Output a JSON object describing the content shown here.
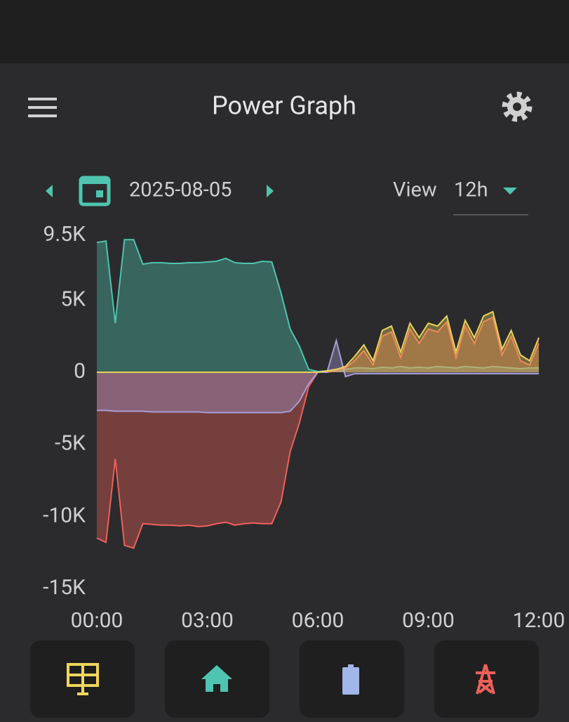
{
  "header": {
    "title": "Power Graph"
  },
  "date_bar": {
    "date": "2025-08-05",
    "view_label": "View",
    "view_value": "12h"
  },
  "chart_data": {
    "type": "area",
    "xlim": [
      0,
      12
    ],
    "xticks": [
      {
        "value": 0,
        "label": "00:00"
      },
      {
        "value": 3,
        "label": "03:00"
      },
      {
        "value": 6,
        "label": "06:00"
      },
      {
        "value": 9,
        "label": "09:00"
      },
      {
        "value": 12,
        "label": "12:00"
      }
    ],
    "ylim": [
      -15000,
      9500
    ],
    "yticks": [
      {
        "value": -15000,
        "label": "-15K"
      },
      {
        "value": -10000,
        "label": "-10K"
      },
      {
        "value": -5000,
        "label": "-5K"
      },
      0,
      {
        "value": 5000,
        "label": "5K"
      },
      {
        "value": 9500,
        "label": "9.5K"
      }
    ],
    "x": [
      0,
      0.25,
      0.5,
      0.75,
      1,
      1.25,
      1.5,
      1.75,
      2,
      2.25,
      2.5,
      2.75,
      3,
      3.25,
      3.5,
      3.75,
      4,
      4.25,
      4.5,
      4.75,
      5,
      5.25,
      5.5,
      5.75,
      6,
      6.25,
      6.5,
      6.75,
      7,
      7.25,
      7.5,
      7.75,
      8,
      8.25,
      8.5,
      8.75,
      9,
      9.25,
      9.5,
      9.75,
      10,
      10.25,
      10.5,
      10.75,
      11,
      11.25,
      11.5,
      11.75,
      12
    ],
    "series": [
      {
        "color": "#4fc4b0",
        "values": [
          9000,
          9100,
          3400,
          9200,
          9200,
          7500,
          7600,
          7600,
          7550,
          7550,
          7600,
          7600,
          7650,
          7700,
          7900,
          7600,
          7550,
          7550,
          7700,
          7650,
          5500,
          3000,
          1800,
          200,
          50,
          100,
          150,
          200,
          300,
          300,
          250,
          350,
          300,
          400,
          300,
          350,
          300,
          400,
          350,
          300,
          400,
          350,
          300,
          400,
          350,
          300,
          250,
          300,
          300
        ]
      },
      {
        "color": "#f0605a",
        "values": [
          -11500,
          -11800,
          -6000,
          -12000,
          -12200,
          -10500,
          -10550,
          -10600,
          -10600,
          -10650,
          -10600,
          -10700,
          -10650,
          -10500,
          -10400,
          -10600,
          -10500,
          -10450,
          -10500,
          -10500,
          -9000,
          -5500,
          -3500,
          -1000,
          0,
          0,
          100,
          300,
          800,
          1500,
          500,
          2500,
          2800,
          1000,
          3000,
          2000,
          3000,
          2800,
          3500,
          1000,
          3200,
          2000,
          3500,
          3800,
          1200,
          2500,
          800,
          500,
          2000
        ]
      },
      {
        "color": "#a89cd6",
        "values": [
          -2650,
          -2650,
          -2700,
          -2700,
          -2700,
          -2700,
          -2750,
          -2750,
          -2750,
          -2750,
          -2750,
          -2750,
          -2800,
          -2800,
          -2800,
          -2800,
          -2800,
          -2800,
          -2800,
          -2800,
          -2800,
          -2700,
          -2000,
          -800,
          0,
          0,
          2200,
          -300,
          -100,
          -100,
          -100,
          -100,
          -100,
          -100,
          -100,
          -100,
          -100,
          -100,
          -100,
          -100,
          -100,
          -100,
          -100,
          -100,
          -100,
          -100,
          -100,
          -100,
          -100
        ]
      },
      {
        "color": "#e8d25a",
        "values": [
          0,
          0,
          0,
          0,
          0,
          0,
          0,
          0,
          0,
          0,
          0,
          0,
          0,
          0,
          0,
          0,
          0,
          0,
          0,
          0,
          0,
          0,
          0,
          0,
          0,
          100,
          200,
          400,
          1100,
          1900,
          800,
          2900,
          3200,
          1400,
          3400,
          2400,
          3400,
          3200,
          3900,
          1400,
          3600,
          2400,
          3900,
          4200,
          1600,
          2900,
          1200,
          800,
          2400
        ]
      }
    ]
  }
}
